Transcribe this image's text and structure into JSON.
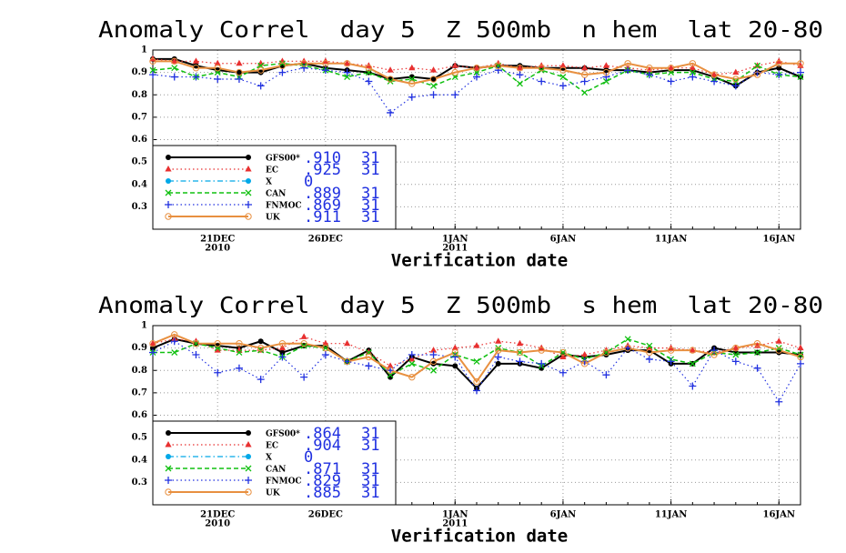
{
  "chart_data": [
    {
      "type": "line",
      "title": "Anomaly Correl  day 5  Z 500mb  n hem  lat 20-80",
      "xlabel": "Verification date",
      "x": [
        "2010-12-18",
        "2010-12-19",
        "2010-12-20",
        "2010-12-21",
        "2010-12-22",
        "2010-12-23",
        "2010-12-24",
        "2010-12-25",
        "2010-12-26",
        "2010-12-27",
        "2010-12-28",
        "2010-12-29",
        "2010-12-30",
        "2010-12-31",
        "2011-01-01",
        "2011-01-02",
        "2011-01-03",
        "2011-01-04",
        "2011-01-05",
        "2011-01-06",
        "2011-01-07",
        "2011-01-08",
        "2011-01-09",
        "2011-01-10",
        "2011-01-11",
        "2011-01-12",
        "2011-01-13",
        "2011-01-14",
        "2011-01-15",
        "2011-01-16",
        "2011-01-17"
      ],
      "xlim": [
        "2010-12-18",
        "2011-01-17"
      ],
      "xticks": [
        {
          "value": "2010-12-21",
          "label": "21DEC",
          "year": "2010"
        },
        {
          "value": "2010-12-26",
          "label": "26DEC"
        },
        {
          "value": "2011-01-01",
          "label": "1JAN",
          "year": "2011"
        },
        {
          "value": "2011-01-06",
          "label": "6JAN"
        },
        {
          "value": "2011-01-11",
          "label": "11JAN"
        },
        {
          "value": "2011-01-16",
          "label": "16JAN"
        }
      ],
      "ylim": [
        0.2,
        1
      ],
      "yticks": [
        1,
        0.9,
        0.8,
        0.7,
        0.6,
        0.5,
        0.4,
        0.3
      ],
      "grid": true,
      "legend": "lower left",
      "series": [
        {
          "name": "GFS00*",
          "color": "#000000",
          "marker": "dot",
          "dash": "solid",
          "score": 0.91,
          "score_label": ".910",
          "count": 31,
          "values": [
            0.96,
            0.96,
            0.93,
            0.91,
            0.9,
            0.9,
            0.93,
            0.94,
            0.92,
            0.91,
            0.9,
            0.87,
            0.88,
            0.87,
            0.93,
            0.92,
            0.93,
            0.93,
            0.92,
            0.92,
            0.92,
            0.91,
            0.91,
            0.9,
            0.91,
            0.91,
            0.88,
            0.84,
            0.9,
            0.92,
            0.88
          ]
        },
        {
          "name": "EC",
          "color": "#e83030",
          "marker": "triangle",
          "dash": "dotted",
          "score": 0.925,
          "score_label": ".925",
          "count": 31,
          "values": [
            0.96,
            0.95,
            0.95,
            0.94,
            0.94,
            0.94,
            0.95,
            0.95,
            0.95,
            0.94,
            0.93,
            0.91,
            0.92,
            0.91,
            0.93,
            0.92,
            0.94,
            0.92,
            0.93,
            0.93,
            0.92,
            0.93,
            0.92,
            0.91,
            0.92,
            0.92,
            0.89,
            0.9,
            0.93,
            0.95,
            0.93
          ]
        },
        {
          "name": "X",
          "color": "#00a8e8",
          "marker": "dot",
          "dash": "dashdot",
          "score": 0,
          "score_label": "0",
          "values": [
            null,
            null,
            null,
            null,
            null,
            null,
            null,
            null,
            null,
            null,
            null,
            null,
            null,
            null,
            null,
            null,
            null,
            null,
            null,
            null,
            null,
            null,
            null,
            null,
            null,
            null,
            null,
            null,
            null,
            null,
            null
          ]
        },
        {
          "name": "CAN",
          "color": "#10c010",
          "marker": "x",
          "dash": "dashed",
          "score": 0.889,
          "score_label": ".889",
          "count": 31,
          "values": [
            0.91,
            0.92,
            0.88,
            0.9,
            0.88,
            0.93,
            0.94,
            0.93,
            0.91,
            0.88,
            0.9,
            0.86,
            0.87,
            0.84,
            0.88,
            0.9,
            0.93,
            0.85,
            0.91,
            0.88,
            0.81,
            0.86,
            0.91,
            0.89,
            0.9,
            0.9,
            0.87,
            0.86,
            0.93,
            0.89,
            0.88
          ]
        },
        {
          "name": "FNMOC",
          "color": "#2030e0",
          "marker": "plus",
          "dash": "dotted",
          "score": 0.869,
          "score_label": ".869",
          "count": 31,
          "values": [
            0.89,
            0.88,
            0.88,
            0.87,
            0.87,
            0.84,
            0.9,
            0.92,
            0.91,
            0.9,
            0.86,
            0.72,
            0.79,
            0.8,
            0.8,
            0.88,
            0.91,
            0.89,
            0.86,
            0.84,
            0.86,
            0.88,
            0.91,
            0.89,
            0.86,
            0.88,
            0.86,
            0.84,
            0.9,
            0.89,
            0.9
          ]
        },
        {
          "name": "UK",
          "color": "#e89040",
          "marker": "circle",
          "dash": "solid",
          "score": 0.911,
          "score_label": ".911",
          "count": 31,
          "values": [
            0.95,
            0.95,
            0.92,
            0.92,
            0.9,
            0.91,
            0.93,
            0.94,
            0.94,
            0.94,
            0.92,
            0.87,
            0.85,
            0.87,
            0.9,
            0.92,
            0.93,
            0.92,
            0.92,
            0.91,
            0.89,
            0.9,
            0.94,
            0.92,
            0.92,
            0.94,
            0.89,
            0.87,
            0.89,
            0.94,
            0.94
          ]
        }
      ]
    },
    {
      "type": "line",
      "title": "Anomaly Correl  day 5  Z 500mb  s hem  lat 20-80",
      "xlabel": "Verification date",
      "x": [
        "2010-12-18",
        "2010-12-19",
        "2010-12-20",
        "2010-12-21",
        "2010-12-22",
        "2010-12-23",
        "2010-12-24",
        "2010-12-25",
        "2010-12-26",
        "2010-12-27",
        "2010-12-28",
        "2010-12-29",
        "2010-12-30",
        "2010-12-31",
        "2011-01-01",
        "2011-01-02",
        "2011-01-03",
        "2011-01-04",
        "2011-01-05",
        "2011-01-06",
        "2011-01-07",
        "2011-01-08",
        "2011-01-09",
        "2011-01-10",
        "2011-01-11",
        "2011-01-12",
        "2011-01-13",
        "2011-01-14",
        "2011-01-15",
        "2011-01-16",
        "2011-01-17"
      ],
      "xlim": [
        "2010-12-18",
        "2011-01-17"
      ],
      "xticks": [
        {
          "value": "2010-12-21",
          "label": "21DEC",
          "year": "2010"
        },
        {
          "value": "2010-12-26",
          "label": "26DEC"
        },
        {
          "value": "2011-01-01",
          "label": "1JAN",
          "year": "2011"
        },
        {
          "value": "2011-01-06",
          "label": "6JAN"
        },
        {
          "value": "2011-01-11",
          "label": "11JAN"
        },
        {
          "value": "2011-01-16",
          "label": "16JAN"
        }
      ],
      "ylim": [
        0.2,
        1
      ],
      "yticks": [
        1,
        0.9,
        0.8,
        0.7,
        0.6,
        0.5,
        0.4,
        0.3
      ],
      "grid": true,
      "legend": "lower left",
      "series": [
        {
          "name": "GFS00*",
          "color": "#000000",
          "marker": "dot",
          "dash": "solid",
          "score": 0.864,
          "score_label": ".864",
          "count": 31,
          "values": [
            0.9,
            0.94,
            0.92,
            0.91,
            0.9,
            0.93,
            0.88,
            0.91,
            0.91,
            0.84,
            0.89,
            0.77,
            0.86,
            0.83,
            0.82,
            0.72,
            0.83,
            0.83,
            0.81,
            0.87,
            0.86,
            0.87,
            0.89,
            0.89,
            0.83,
            0.83,
            0.9,
            0.88,
            0.88,
            0.88,
            0.87
          ]
        },
        {
          "name": "EC",
          "color": "#e83030",
          "marker": "triangle",
          "dash": "dotted",
          "score": 0.904,
          "score_label": ".904",
          "count": 31,
          "values": [
            0.92,
            0.94,
            0.93,
            0.89,
            0.89,
            0.89,
            0.9,
            0.95,
            0.92,
            0.92,
            0.88,
            0.82,
            0.85,
            0.89,
            0.9,
            0.91,
            0.93,
            0.92,
            0.9,
            0.86,
            0.87,
            0.89,
            0.91,
            0.9,
            0.9,
            0.89,
            0.88,
            0.9,
            0.91,
            0.93,
            0.9
          ]
        },
        {
          "name": "X",
          "color": "#00a8e8",
          "marker": "dot",
          "dash": "dashdot",
          "score": 0,
          "score_label": "0",
          "values": [
            null,
            null,
            null,
            null,
            null,
            null,
            null,
            null,
            null,
            null,
            null,
            null,
            null,
            null,
            null,
            null,
            null,
            null,
            null,
            null,
            null,
            null,
            null,
            null,
            null,
            null,
            null,
            null,
            null,
            null,
            null
          ]
        },
        {
          "name": "CAN",
          "color": "#10c010",
          "marker": "x",
          "dash": "dashed",
          "score": 0.871,
          "score_label": ".871",
          "count": 31,
          "values": [
            0.88,
            0.88,
            0.92,
            0.9,
            0.88,
            0.89,
            0.86,
            0.91,
            0.9,
            0.84,
            0.88,
            0.78,
            0.83,
            0.8,
            0.87,
            0.84,
            0.9,
            0.88,
            0.82,
            0.88,
            0.85,
            0.88,
            0.94,
            0.91,
            0.85,
            0.83,
            0.88,
            0.87,
            0.88,
            0.9,
            0.87
          ]
        },
        {
          "name": "FNMOC",
          "color": "#2030e0",
          "marker": "plus",
          "dash": "dotted",
          "score": 0.829,
          "score_label": ".829",
          "count": 31,
          "values": [
            0.88,
            0.93,
            0.87,
            0.79,
            0.81,
            0.76,
            0.86,
            0.77,
            0.87,
            0.84,
            0.82,
            0.8,
            0.87,
            0.87,
            0.86,
            0.71,
            0.86,
            0.84,
            0.83,
            0.79,
            0.84,
            0.78,
            0.9,
            0.85,
            0.84,
            0.73,
            0.89,
            0.84,
            0.81,
            0.66,
            0.83
          ]
        },
        {
          "name": "UK",
          "color": "#e89040",
          "marker": "circle",
          "dash": "solid",
          "score": 0.885,
          "score_label": ".885",
          "count": 31,
          "values": [
            0.92,
            0.96,
            0.92,
            0.92,
            0.92,
            0.9,
            0.92,
            0.92,
            0.9,
            0.84,
            0.86,
            0.8,
            0.77,
            0.84,
            0.88,
            0.75,
            0.89,
            0.88,
            0.89,
            0.88,
            0.83,
            0.88,
            0.9,
            0.88,
            0.89,
            0.89,
            0.87,
            0.9,
            0.92,
            0.89,
            0.86
          ]
        }
      ]
    }
  ]
}
